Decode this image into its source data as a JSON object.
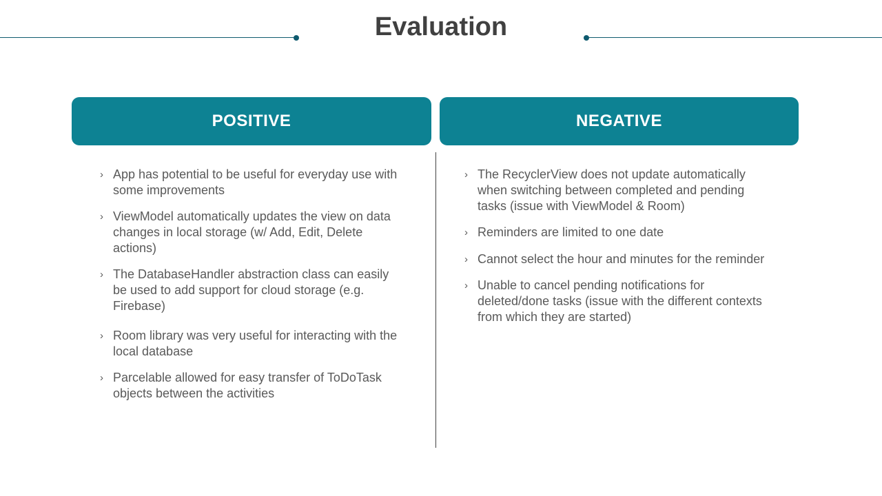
{
  "slide": {
    "title": "Evaluation"
  },
  "positive": {
    "header": "POSITIVE",
    "items": [
      "App has potential to be useful for everyday use with some improvements",
      "ViewModel automatically updates the view on data changes in local storage (w/ Add, Edit, Delete actions)",
      "The DatabaseHandler abstraction class can easily be used to add support for cloud storage (e.g. Firebase)",
      "Room library was very useful for interacting with the local database",
      "Parcelable allowed for easy transfer of ToDoTask objects between the activities"
    ]
  },
  "negative": {
    "header": "NEGATIVE",
    "items": [
      "The RecyclerView does not update automatically when switching between completed and pending tasks (issue with ViewModel & Room)",
      "Reminders are limited to one date",
      "Cannot select the hour and minutes for the reminder",
      "Unable to cancel pending notifications for deleted/done tasks (issue with the different contexts from which they are started)"
    ]
  },
  "bullet_glyph": "›",
  "colors": {
    "accent": "#0d8293",
    "rule": "#0e5a6e",
    "title": "#404040",
    "body_text": "#595959"
  }
}
